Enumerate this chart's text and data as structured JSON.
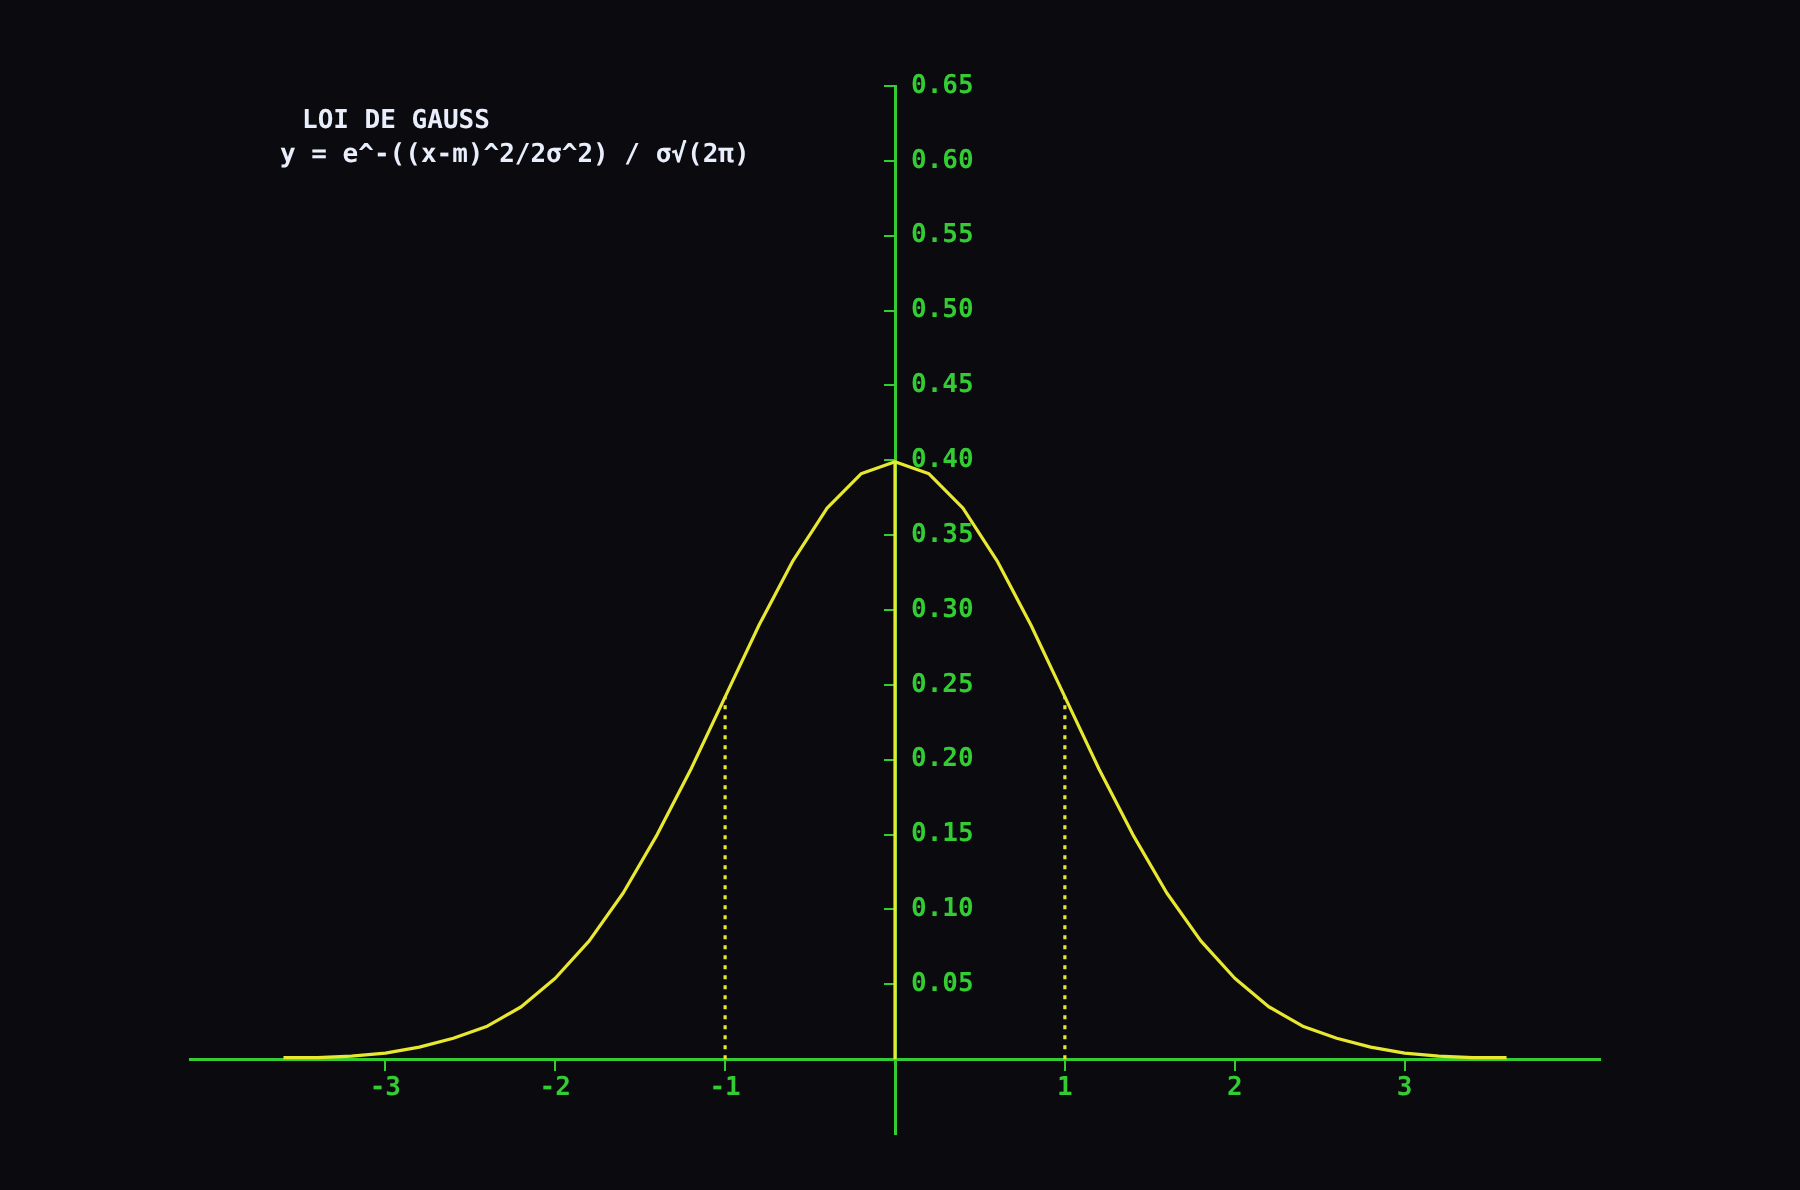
{
  "chart_data": {
    "type": "line",
    "title": "LOI DE GAUSS",
    "subtitle": "y = e^-((x-m)^2/2σ^2) / σ√(2π)",
    "xlim": [
      -4.15,
      4.15
    ],
    "ylim": [
      -0.05,
      0.65
    ],
    "xticks": [
      -3,
      -2,
      -1,
      1,
      2,
      3
    ],
    "yticks": [
      0.05,
      {
        "value": 0.1,
        "label": "0.10"
      },
      0.15,
      {
        "value": 0.2,
        "label": "0.20"
      },
      0.25,
      {
        "value": 0.3,
        "label": "0.30"
      },
      0.35,
      {
        "value": 0.4,
        "label": "0.40"
      },
      0.45,
      {
        "value": 0.5,
        "label": "0.50"
      },
      0.55,
      {
        "value": 0.6,
        "label": "0.60"
      },
      0.65
    ],
    "grid": false,
    "legend": false,
    "marker": "none",
    "series": [
      {
        "color": "#e8e830",
        "line_style": "solid",
        "x": [
          -3.6,
          -3.4,
          -3.2,
          -3.0,
          -2.8,
          -2.6,
          -2.4,
          -2.2,
          -2.0,
          -1.8,
          -1.6,
          -1.4,
          -1.2,
          -1.0,
          -0.8,
          -0.6,
          -0.4,
          -0.2,
          0,
          0.2,
          0.4,
          0.6,
          0.8,
          1.0,
          1.2,
          1.4,
          1.6,
          1.8,
          2.0,
          2.2,
          2.4,
          2.6,
          2.8,
          3.0,
          3.2,
          3.4,
          3.6
        ],
        "values": [
          0.001,
          0.001,
          0.002,
          0.004,
          0.008,
          0.014,
          0.022,
          0.035,
          0.054,
          0.079,
          0.111,
          0.15,
          0.194,
          0.242,
          0.29,
          0.333,
          0.368,
          0.391,
          0.399,
          0.391,
          0.368,
          0.333,
          0.29,
          0.242,
          0.194,
          0.15,
          0.111,
          0.079,
          0.054,
          0.035,
          0.022,
          0.014,
          0.008,
          0.004,
          0.002,
          0.001,
          0.001
        ]
      },
      {
        "color": "#e8e830",
        "line_style": "solid",
        "x": [
          0,
          0
        ],
        "values": [
          0,
          0.399
        ]
      },
      {
        "color": "#e8e830",
        "line_style": "dotted",
        "x": [
          -1,
          -1
        ],
        "values": [
          0,
          0.242
        ]
      },
      {
        "color": "#e8e830",
        "line_style": "dotted",
        "x": [
          1,
          1
        ],
        "values": [
          0,
          0.242
        ]
      }
    ]
  }
}
